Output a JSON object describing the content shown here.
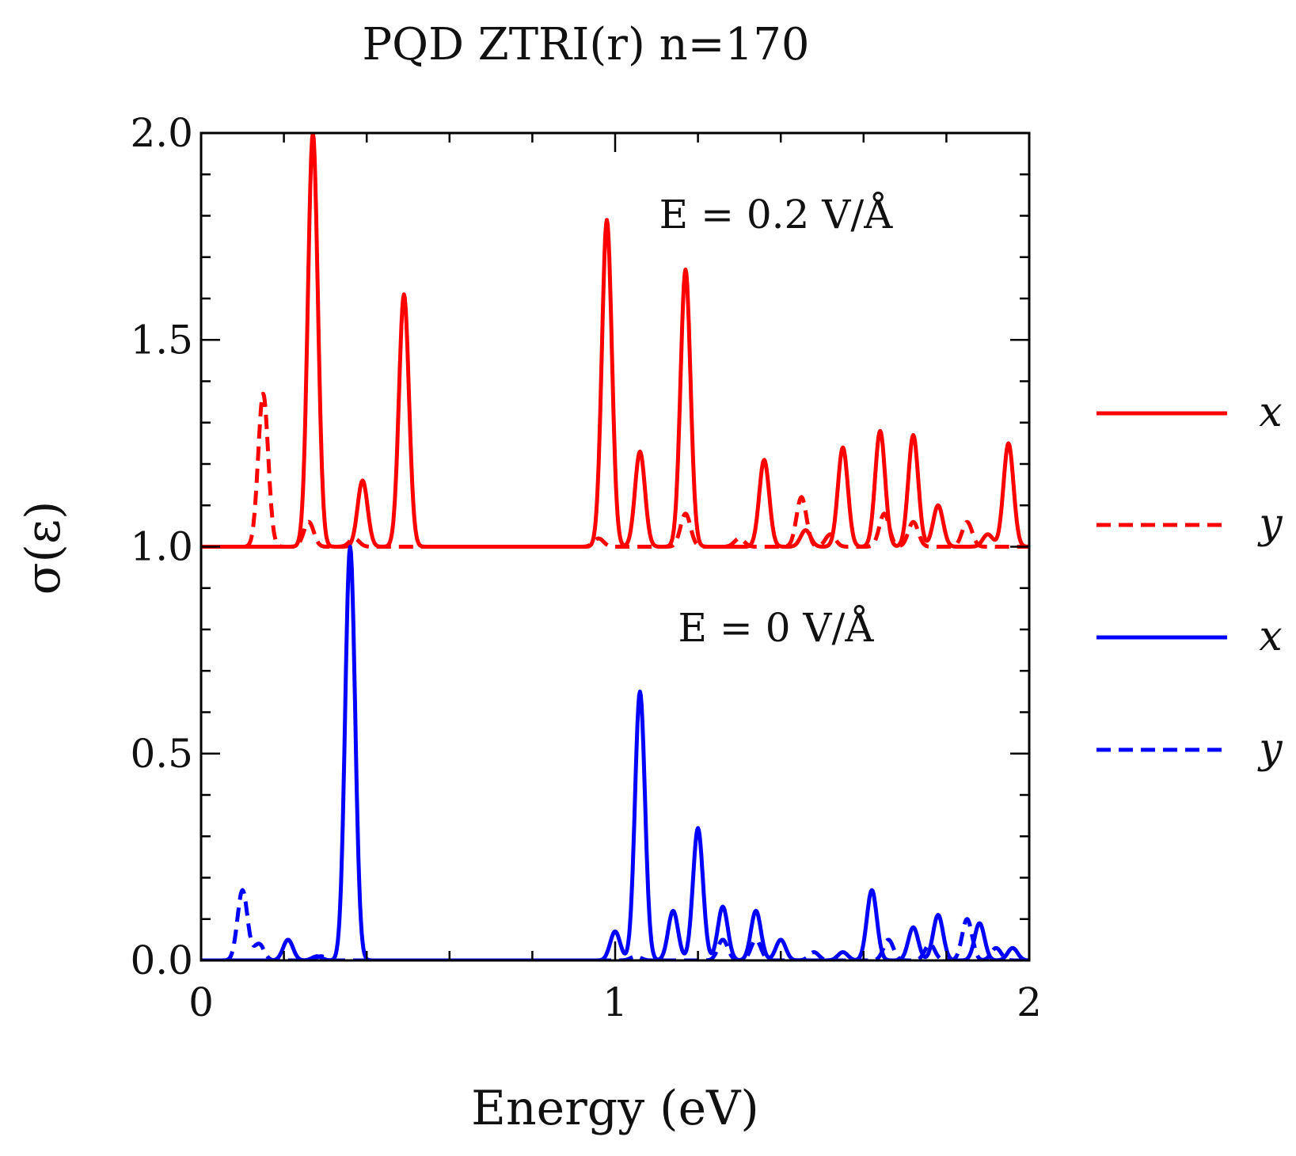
{
  "chart_data": {
    "type": "line",
    "title": "PQD ZTRI(r) n=170",
    "xlabel": "Energy (eV)",
    "ylabel": "σ(ε)",
    "xlim": [
      0,
      2
    ],
    "ylim": [
      0,
      2.0
    ],
    "x_ticks": [
      0,
      1,
      2
    ],
    "x_tick_labels": [
      "0",
      "1",
      "2"
    ],
    "y_ticks": [
      0.0,
      0.5,
      1.0,
      1.5,
      2.0
    ],
    "y_tick_labels": [
      "0.0",
      "0.5",
      "1.0",
      "1.5",
      "2.0"
    ],
    "annotations": [
      {
        "text": "E = 0.2 V/Å",
        "x": 1.2,
        "y": 1.8
      },
      {
        "text": "E = 0 V/Å",
        "x": 1.2,
        "y": 0.83
      }
    ],
    "legend_location": "right",
    "peak_width_eV": 0.012,
    "series": [
      {
        "name": "x",
        "group": "E = 0.2 V/Å",
        "color": "#ff0000",
        "style": "solid",
        "baseline": 1.0,
        "peaks": [
          [
            0.27,
            1.0
          ],
          [
            0.39,
            0.16
          ],
          [
            0.49,
            0.61
          ],
          [
            0.98,
            0.79
          ],
          [
            1.06,
            0.23
          ],
          [
            1.17,
            0.67
          ],
          [
            1.36,
            0.21
          ],
          [
            1.46,
            0.04
          ],
          [
            1.55,
            0.24
          ],
          [
            1.64,
            0.28
          ],
          [
            1.72,
            0.27
          ],
          [
            1.78,
            0.1
          ],
          [
            1.9,
            0.03
          ],
          [
            1.95,
            0.25
          ]
        ]
      },
      {
        "name": "y",
        "group": "E = 0.2 V/Å",
        "color": "#ff0000",
        "style": "dashed",
        "baseline": 1.0,
        "peaks": [
          [
            0.15,
            0.37
          ],
          [
            0.26,
            0.06
          ],
          [
            0.37,
            0.02
          ],
          [
            0.96,
            0.02
          ],
          [
            1.17,
            0.08
          ],
          [
            1.3,
            0.02
          ],
          [
            1.45,
            0.12
          ],
          [
            1.52,
            0.03
          ],
          [
            1.65,
            0.08
          ],
          [
            1.72,
            0.06
          ],
          [
            1.85,
            0.06
          ]
        ]
      },
      {
        "name": "x",
        "group": "E = 0 V/Å",
        "color": "#0000ff",
        "style": "solid",
        "baseline": 0.0,
        "peaks": [
          [
            0.21,
            0.05
          ],
          [
            0.28,
            0.01
          ],
          [
            0.36,
            1.0
          ],
          [
            1.0,
            0.07
          ],
          [
            1.06,
            0.65
          ],
          [
            1.14,
            0.12
          ],
          [
            1.2,
            0.32
          ],
          [
            1.26,
            0.13
          ],
          [
            1.34,
            0.12
          ],
          [
            1.4,
            0.05
          ],
          [
            1.55,
            0.02
          ],
          [
            1.62,
            0.17
          ],
          [
            1.72,
            0.08
          ],
          [
            1.78,
            0.11
          ],
          [
            1.88,
            0.09
          ],
          [
            1.96,
            0.03
          ]
        ]
      },
      {
        "name": "y",
        "group": "E = 0 V/Å",
        "color": "#0000ff",
        "style": "dashed",
        "baseline": 0.0,
        "peaks": [
          [
            0.1,
            0.17
          ],
          [
            0.14,
            0.04
          ],
          [
            0.29,
            0.01
          ],
          [
            1.05,
            0.01
          ],
          [
            1.26,
            0.05
          ],
          [
            1.34,
            0.05
          ],
          [
            1.48,
            0.02
          ],
          [
            1.66,
            0.05
          ],
          [
            1.76,
            0.04
          ],
          [
            1.85,
            0.1
          ],
          [
            1.92,
            0.03
          ]
        ]
      }
    ]
  }
}
